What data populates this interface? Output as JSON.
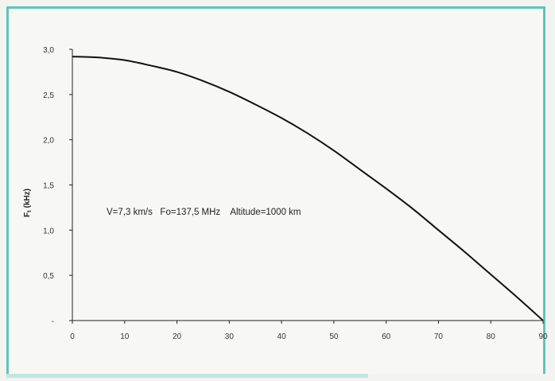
{
  "chart_data": {
    "type": "line",
    "title": "",
    "xlabel": "",
    "ylabel": "F",
    "ylabel_subscript": "t",
    "ylabel_unit": "(kHz)",
    "xlim": [
      0,
      90
    ],
    "ylim": [
      0,
      3.0
    ],
    "x_ticks": [
      0,
      10,
      20,
      30,
      40,
      50,
      60,
      70,
      80,
      90
    ],
    "x_tick_labels": [
      "0",
      "10",
      "20",
      "30",
      "40",
      "50",
      "60",
      "70",
      "80",
      "90"
    ],
    "y_ticks": [
      0,
      0.5,
      1.0,
      1.5,
      2.0,
      2.5,
      3.0
    ],
    "y_tick_labels": [
      "-",
      "0,5",
      "1,0",
      "1,5",
      "2,0",
      "2,5",
      "3,0"
    ],
    "grid": false,
    "annotation": "V=7,3 km/s   Fo=137,5 MHz    Altitude=1000 km",
    "series": [
      {
        "x": [
          0,
          5,
          10,
          15,
          20,
          25,
          30,
          35,
          40,
          45,
          50,
          55,
          60,
          65,
          70,
          75,
          80,
          85,
          90
        ],
        "values": [
          2.92,
          2.91,
          2.88,
          2.82,
          2.75,
          2.65,
          2.53,
          2.39,
          2.24,
          2.07,
          1.88,
          1.67,
          1.46,
          1.24,
          1.0,
          0.76,
          0.51,
          0.26,
          0.0
        ]
      }
    ],
    "line_color": "#111111"
  }
}
